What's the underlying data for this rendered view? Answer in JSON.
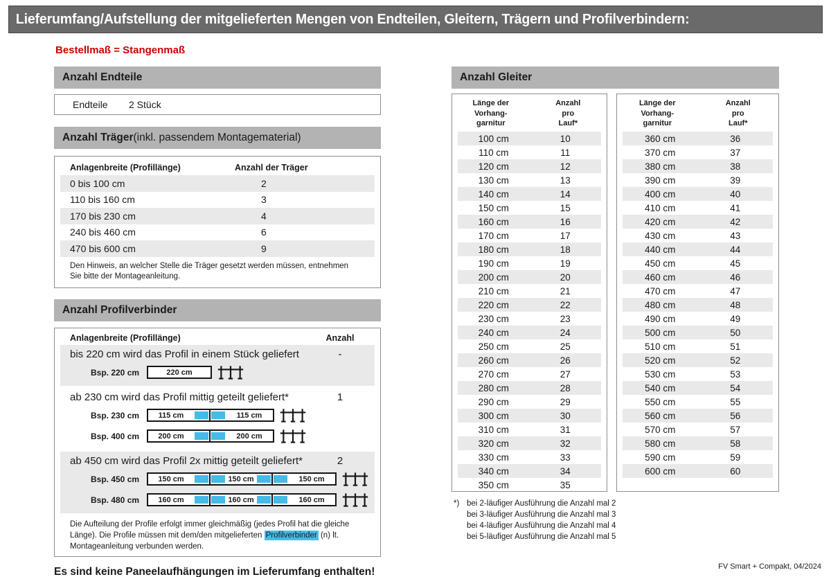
{
  "header": {
    "title": "Lieferumfang/Aufstellung der mitgelieferten Mengen von Endteilen, Gleitern, Trägern und Profilverbindern:",
    "subtitle": "Bestellmaß = Stangenmaß"
  },
  "endteile": {
    "section_title": "Anzahl Endteile",
    "label": "Endteile",
    "value": "2 Stück"
  },
  "traeger": {
    "section_title_bold": "Anzahl Träger",
    "section_title_rest": " (inkl. passendem Montagematerial)",
    "col1": "Anlagenbreite (Profillänge)",
    "col2": "Anzahl der Träger",
    "rows": [
      [
        "0 bis 100 cm",
        "2"
      ],
      [
        "110 bis 160 cm",
        "3"
      ],
      [
        "170 bis 230 cm",
        "4"
      ],
      [
        "240 bis 460 cm",
        "6"
      ],
      [
        "470 bis 600 cm",
        "9"
      ]
    ],
    "note": "Den Hinweis, an welcher Stelle die Träger gesetzt werden müssen, entnehmen Sie bitte der Montageanleitung."
  },
  "profilverbinder": {
    "section_title": "Anzahl Profilverbinder",
    "col1": "Anlagenbreite (Profillänge)",
    "col2": "Anzahl",
    "groups": [
      {
        "text": "bis 220 cm wird das Profil in einem Stück geliefert",
        "anzahl": "-",
        "shaded": true,
        "examples": [
          {
            "label": "Bsp. 220 cm",
            "segments": [
              "220 cm"
            ]
          }
        ]
      },
      {
        "text": "ab 230 cm wird das Profil mittig geteilt geliefert*",
        "anzahl": "1",
        "shaded": false,
        "examples": [
          {
            "label": "Bsp. 230 cm",
            "segments": [
              "115 cm",
              "115 cm"
            ]
          },
          {
            "label": "Bsp. 400 cm",
            "segments": [
              "200 cm",
              "200 cm"
            ]
          }
        ]
      },
      {
        "text": "ab 450 cm wird das Profil 2x mittig geteilt geliefert*",
        "anzahl": "2",
        "shaded": true,
        "examples": [
          {
            "label": "Bsp. 450 cm",
            "segments": [
              "150 cm",
              "150 cm",
              "150 cm"
            ]
          },
          {
            "label": "Bsp. 480 cm",
            "segments": [
              "160 cm",
              "160 cm",
              "160 cm"
            ]
          }
        ]
      }
    ],
    "note_part1": "Die Aufteilung der Profile erfolgt immer gleichmäßig (jedes Profil hat die gleiche Länge). Die Profile müssen mit dem/den mitgelieferten ",
    "note_highlight": "Profilverbinder",
    "note_part2": " (n) lt. Montageanleitung verbunden werden."
  },
  "paneel_note": "Es sind keine Paneelaufhängungen im Lieferumfang enthalten!",
  "gleiter": {
    "section_title": "Anzahl Gleiter",
    "col1": "Länge der\nVorhang-\ngarnitur",
    "col2": "Anzahl\npro\nLauf*",
    "table1_rows": [
      [
        "100 cm",
        "10"
      ],
      [
        "110 cm",
        "11"
      ],
      [
        "120 cm",
        "12"
      ],
      [
        "130 cm",
        "13"
      ],
      [
        "140 cm",
        "14"
      ],
      [
        "150 cm",
        "15"
      ],
      [
        "160 cm",
        "16"
      ],
      [
        "170 cm",
        "17"
      ],
      [
        "180 cm",
        "18"
      ],
      [
        "190 cm",
        "19"
      ],
      [
        "200 cm",
        "20"
      ],
      [
        "210 cm",
        "21"
      ],
      [
        "220 cm",
        "22"
      ],
      [
        "230 cm",
        "23"
      ],
      [
        "240 cm",
        "24"
      ],
      [
        "250 cm",
        "25"
      ],
      [
        "260 cm",
        "26"
      ],
      [
        "270 cm",
        "27"
      ],
      [
        "280 cm",
        "28"
      ],
      [
        "290 cm",
        "29"
      ],
      [
        "300 cm",
        "30"
      ],
      [
        "310 cm",
        "31"
      ],
      [
        "320 cm",
        "32"
      ],
      [
        "330 cm",
        "33"
      ],
      [
        "340 cm",
        "34"
      ],
      [
        "350 cm",
        "35"
      ]
    ],
    "table2_rows": [
      [
        "360 cm",
        "36"
      ],
      [
        "370 cm",
        "37"
      ],
      [
        "380 cm",
        "38"
      ],
      [
        "390 cm",
        "39"
      ],
      [
        "400 cm",
        "40"
      ],
      [
        "410 cm",
        "41"
      ],
      [
        "420 cm",
        "42"
      ],
      [
        "430 cm",
        "43"
      ],
      [
        "440 cm",
        "44"
      ],
      [
        "450 cm",
        "45"
      ],
      [
        "460 cm",
        "46"
      ],
      [
        "470 cm",
        "47"
      ],
      [
        "480 cm",
        "48"
      ],
      [
        "490 cm",
        "49"
      ],
      [
        "500 cm",
        "50"
      ],
      [
        "510 cm",
        "51"
      ],
      [
        "520 cm",
        "52"
      ],
      [
        "530 cm",
        "53"
      ],
      [
        "540 cm",
        "54"
      ],
      [
        "550 cm",
        "55"
      ],
      [
        "560 cm",
        "56"
      ],
      [
        "570 cm",
        "57"
      ],
      [
        "580 cm",
        "58"
      ],
      [
        "590 cm",
        "59"
      ],
      [
        "600 cm",
        "60"
      ]
    ],
    "footnote_marker": "*)",
    "footnotes": [
      "bei 2-läufiger Ausführung die Anzahl mal 2",
      "bei 3-läufiger Ausführung die Anzahl mal 3",
      "bei 4-läufiger Ausführung die Anzahl mal 4",
      "bei 5-läufiger Ausführung die Anzahl mal 5"
    ]
  },
  "footer": "FV Smart + Compakt, 04/2024",
  "colors": {
    "accent_blue": "#47bae8",
    "titlebar_gray": "#6a6a6a",
    "section_gray": "#b3b3b3",
    "stripe_gray": "#e9e9e9",
    "red": "#cc0000"
  }
}
